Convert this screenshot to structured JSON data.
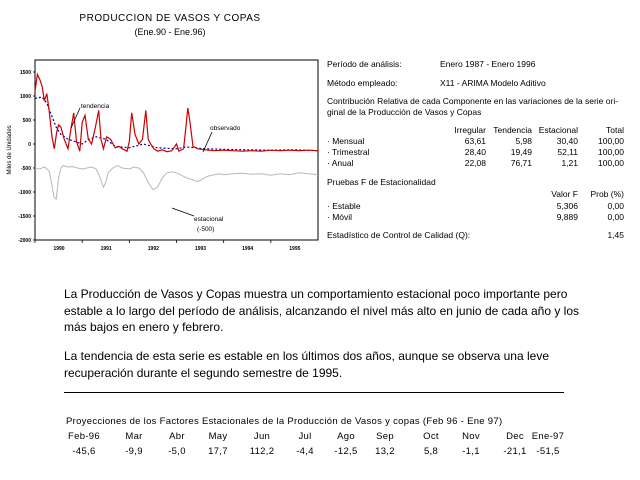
{
  "chart": {
    "title": "PRODUCCION DE VASOS Y COPAS",
    "subtitle": "(Ene.90 - Ene.96)",
    "ylabel": "Miles de Unidades",
    "y_ticks": [
      "1500",
      "1000",
      "500",
      "0",
      "-500",
      "-1000",
      "-1500",
      "-2000"
    ],
    "x_ticks": [
      "1990",
      "1991",
      "1992",
      "1993",
      "1994",
      "1995"
    ],
    "annotations": {
      "tendencia": "tendencia",
      "observado": "observado",
      "estacional_1": "estacional",
      "estacional_2": "(-500)"
    },
    "colors": {
      "observado": "#cc0000",
      "tendencia": "#0000aa",
      "estacional": "#b8b8b8"
    }
  },
  "chart_data": {
    "type": "line",
    "title": "PRODUCCION DE VASOS Y COPAS",
    "subtitle": "(Ene.90 - Ene.96)",
    "ylabel": "Miles de Unidades",
    "xlabel": "",
    "x_range": [
      1990.0,
      1996.0
    ],
    "ylim": [
      -2000,
      1750
    ],
    "series": [
      {
        "name": "observado",
        "x": [
          1990.0,
          1990.05,
          1990.1,
          1990.15,
          1990.2,
          1990.25,
          1990.3,
          1990.36,
          1990.41,
          1990.46,
          1990.5,
          1990.55,
          1990.62,
          1990.7,
          1990.76,
          1990.82,
          1990.88,
          1990.95,
          1991.0,
          1991.06,
          1991.13,
          1991.2,
          1991.28,
          1991.35,
          1991.4,
          1991.45,
          1991.52,
          1991.6,
          1991.7,
          1991.78,
          1991.85,
          1991.95,
          1992.0,
          1992.05,
          1992.12,
          1992.2,
          1992.28,
          1992.35,
          1992.4,
          1992.45,
          1992.52,
          1992.6,
          1992.7,
          1992.8,
          1992.9,
          1993.0,
          1993.05,
          1993.15,
          1993.2,
          1993.24,
          1993.28,
          1993.35,
          1993.45,
          1993.6,
          1993.8,
          1994.0,
          1994.2,
          1994.4,
          1994.6,
          1994.8,
          1995.0,
          1995.2,
          1995.4,
          1995.6,
          1995.8,
          1996.0
        ],
        "y": [
          1100,
          1450,
          1350,
          1200,
          900,
          1050,
          700,
          150,
          -100,
          250,
          400,
          350,
          100,
          -100,
          300,
          650,
          50,
          -150,
          450,
          600,
          100,
          0,
          350,
          700,
          100,
          -100,
          150,
          100,
          -80,
          -50,
          -100,
          -150,
          50,
          650,
          200,
          0,
          100,
          700,
          100,
          0,
          -100,
          -150,
          -120,
          -160,
          -140,
          0,
          -150,
          -100,
          350,
          750,
          500,
          -50,
          -100,
          -120,
          -140,
          -130,
          -140,
          -150,
          -140,
          -150,
          -130,
          -140,
          -130,
          -140,
          -130,
          -140
        ]
      },
      {
        "name": "tendencia",
        "x": [
          1990.0,
          1990.15,
          1990.25,
          1990.35,
          1990.45,
          1990.55,
          1990.7,
          1990.85,
          1991.0,
          1991.15,
          1991.3,
          1991.5,
          1991.7,
          1992.0,
          1992.3,
          1992.6,
          1993.0,
          1993.2,
          1993.4,
          1993.6,
          1994.0,
          1994.5,
          1995.0,
          1995.5,
          1996.0
        ],
        "y": [
          950,
          980,
          850,
          600,
          350,
          200,
          100,
          50,
          0,
          100,
          150,
          100,
          -50,
          -80,
          0,
          -80,
          -100,
          -60,
          -80,
          -100,
          -110,
          -120,
          -130,
          -120,
          -140
        ]
      },
      {
        "name": "estacional (-500)",
        "x": [
          1990.0,
          1990.1,
          1990.2,
          1990.3,
          1990.35,
          1990.4,
          1990.45,
          1990.5,
          1990.55,
          1990.6,
          1990.7,
          1990.8,
          1990.9,
          1991.0,
          1991.1,
          1991.2,
          1991.3,
          1991.38,
          1991.45,
          1991.5,
          1991.55,
          1991.65,
          1991.75,
          1991.85,
          1992.0,
          1992.1,
          1992.2,
          1992.3,
          1992.4,
          1992.5,
          1992.6,
          1992.7,
          1992.8,
          1992.9,
          1993.0,
          1993.1,
          1993.2,
          1993.35,
          1993.45,
          1993.5,
          1993.6,
          1993.7,
          1993.8,
          1993.9,
          1994.0,
          1994.2,
          1994.4,
          1994.6,
          1994.8,
          1995.0,
          1995.2,
          1995.4,
          1995.6,
          1995.8,
          1996.0
        ],
        "y": [
          -500,
          -520,
          -480,
          -560,
          -800,
          -1100,
          -1150,
          -700,
          -500,
          -450,
          -480,
          -470,
          -500,
          -520,
          -500,
          -480,
          -520,
          -700,
          -900,
          -800,
          -600,
          -500,
          -450,
          -500,
          -520,
          -480,
          -500,
          -600,
          -800,
          -950,
          -900,
          -700,
          -600,
          -580,
          -600,
          -650,
          -700,
          -750,
          -780,
          -760,
          -700,
          -660,
          -640,
          -620,
          -640,
          -620,
          -610,
          -630,
          -620,
          -650,
          -620,
          -640,
          -600,
          -620,
          -640
        ]
      }
    ]
  },
  "info": {
    "periodo_label": "Período de análisis:",
    "periodo_value": "Enero 1987 - Enero 1996",
    "metodo_label": "Método empleado:",
    "metodo_value": "X11 - ARIMA Modelo Aditivo",
    "contrib_line1": "Contribución Relativa de cada Componente en las variaciones de la serie ori-",
    "contrib_line2": "ginal de la Producción de Vasos y Copas",
    "headers": [
      "Irregular",
      "Tendencia",
      "Estacional",
      "Total"
    ],
    "rows": [
      {
        "label": "· Mensual",
        "values": [
          "63,61",
          "5,98",
          "30,40",
          "100,00"
        ]
      },
      {
        "label": "· Trimestral",
        "values": [
          "28,40",
          "19,49",
          "52,11",
          "100,00"
        ]
      },
      {
        "label": "· Anual",
        "values": [
          "22,08",
          "76,71",
          "1,21",
          "100,00"
        ]
      }
    ],
    "pruebas_title": "Pruebas F de Estacionalidad",
    "f_headers": [
      "Valor F",
      "Prob (%)"
    ],
    "f_rows": [
      {
        "label": "· Estable",
        "values": [
          "5,306",
          "0,00"
        ]
      },
      {
        "label": "· Móvil",
        "values": [
          "9,889",
          "0,00"
        ]
      }
    ],
    "q_label": "Estadístico de Control de Calidad (Q):",
    "q_value": "1,45"
  },
  "text": {
    "para1": "La Producción de Vasos y Copas  muestra un comportamiento estacional poco importante pero estable a lo largo del período de análisis, alcanzando el nivel más alto en junio de cada año y los más bajos en enero y febrero.",
    "para2": "La tendencia de esta serie es estable en los últimos dos años, aunque se observa una leve recuperación durante el segundo semestre de 1995."
  },
  "projections": {
    "title": "Proyecciones de los Factores Estacionales de la Producción de Vasos y copas (Feb 96 - Ene 97)",
    "months": [
      "Feb-96",
      "Mar",
      "Abr",
      "May",
      "Jun",
      "Jul",
      "Ago",
      "Sep",
      "Oct",
      "Nov",
      "Dec",
      "Ene-97"
    ],
    "values": [
      "-45,6",
      "-9,9",
      "-5,0",
      "17,7",
      "112,2",
      "-4,4",
      "-12,5",
      "13,2",
      "5,8",
      "-1,1",
      "-21,1",
      "-51,5"
    ]
  }
}
